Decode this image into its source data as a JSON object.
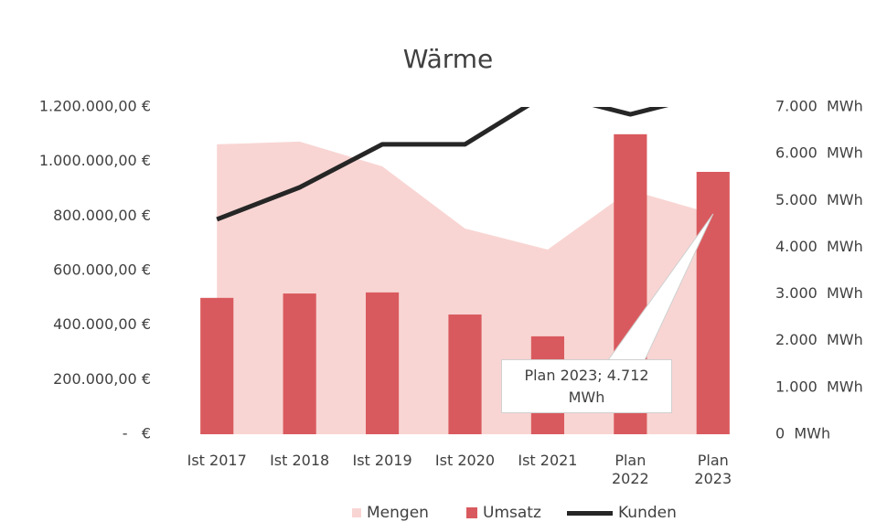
{
  "chart_data": {
    "type": "combo",
    "title": "Wärme",
    "categories": [
      "Ist 2017",
      "Ist 2018",
      "Ist 2019",
      "Ist 2020",
      "Ist 2021",
      "Plan 2022",
      "Plan 2023"
    ],
    "series": [
      {
        "name": "Mengen",
        "type": "area",
        "axis": "y2",
        "color": "#f8d5d3",
        "values": [
          6200,
          6260,
          5730,
          4400,
          3950,
          5220,
          4712
        ]
      },
      {
        "name": "Umsatz",
        "type": "bar",
        "color": "#d95a5e",
        "values": [
          500000,
          516000,
          520000,
          439000,
          359000,
          1100000,
          962000
        ]
      },
      {
        "name": "Kunden",
        "type": "line",
        "color": "#262626",
        "values": [
          788000,
          905000,
          1063000,
          1063000,
          1250000,
          1173000,
          1250000
        ]
      }
    ],
    "ylim": [
      0,
      1200000
    ],
    "yticks": [
      {
        "value": 0,
        "label": "-   €"
      },
      {
        "value": 200000,
        "label": "200.000,00 €"
      },
      {
        "value": 400000,
        "label": "400.000,00 €"
      },
      {
        "value": 600000,
        "label": "600.000,00 €"
      },
      {
        "value": 800000,
        "label": "800.000,00 €"
      },
      {
        "value": 1000000,
        "label": "1.000.000,00 €"
      },
      {
        "value": 1200000,
        "label": "1.200.000,00 €"
      }
    ],
    "y2lim": [
      0,
      7000
    ],
    "y2ticks": [
      {
        "value": 0,
        "label": "0  MWh"
      },
      {
        "value": 1000,
        "label": "1.000  MWh"
      },
      {
        "value": 2000,
        "label": "2.000  MWh"
      },
      {
        "value": 3000,
        "label": "3.000  MWh"
      },
      {
        "value": 4000,
        "label": "4.000  MWh"
      },
      {
        "value": 5000,
        "label": "5.000  MWh"
      },
      {
        "value": 6000,
        "label": "6.000  MWh"
      },
      {
        "value": 7000,
        "label": "7.000  MWh"
      }
    ],
    "annotations": [
      {
        "text": "Plan 2023; 4.712 MWh",
        "series": 0,
        "index": 6
      }
    ]
  }
}
